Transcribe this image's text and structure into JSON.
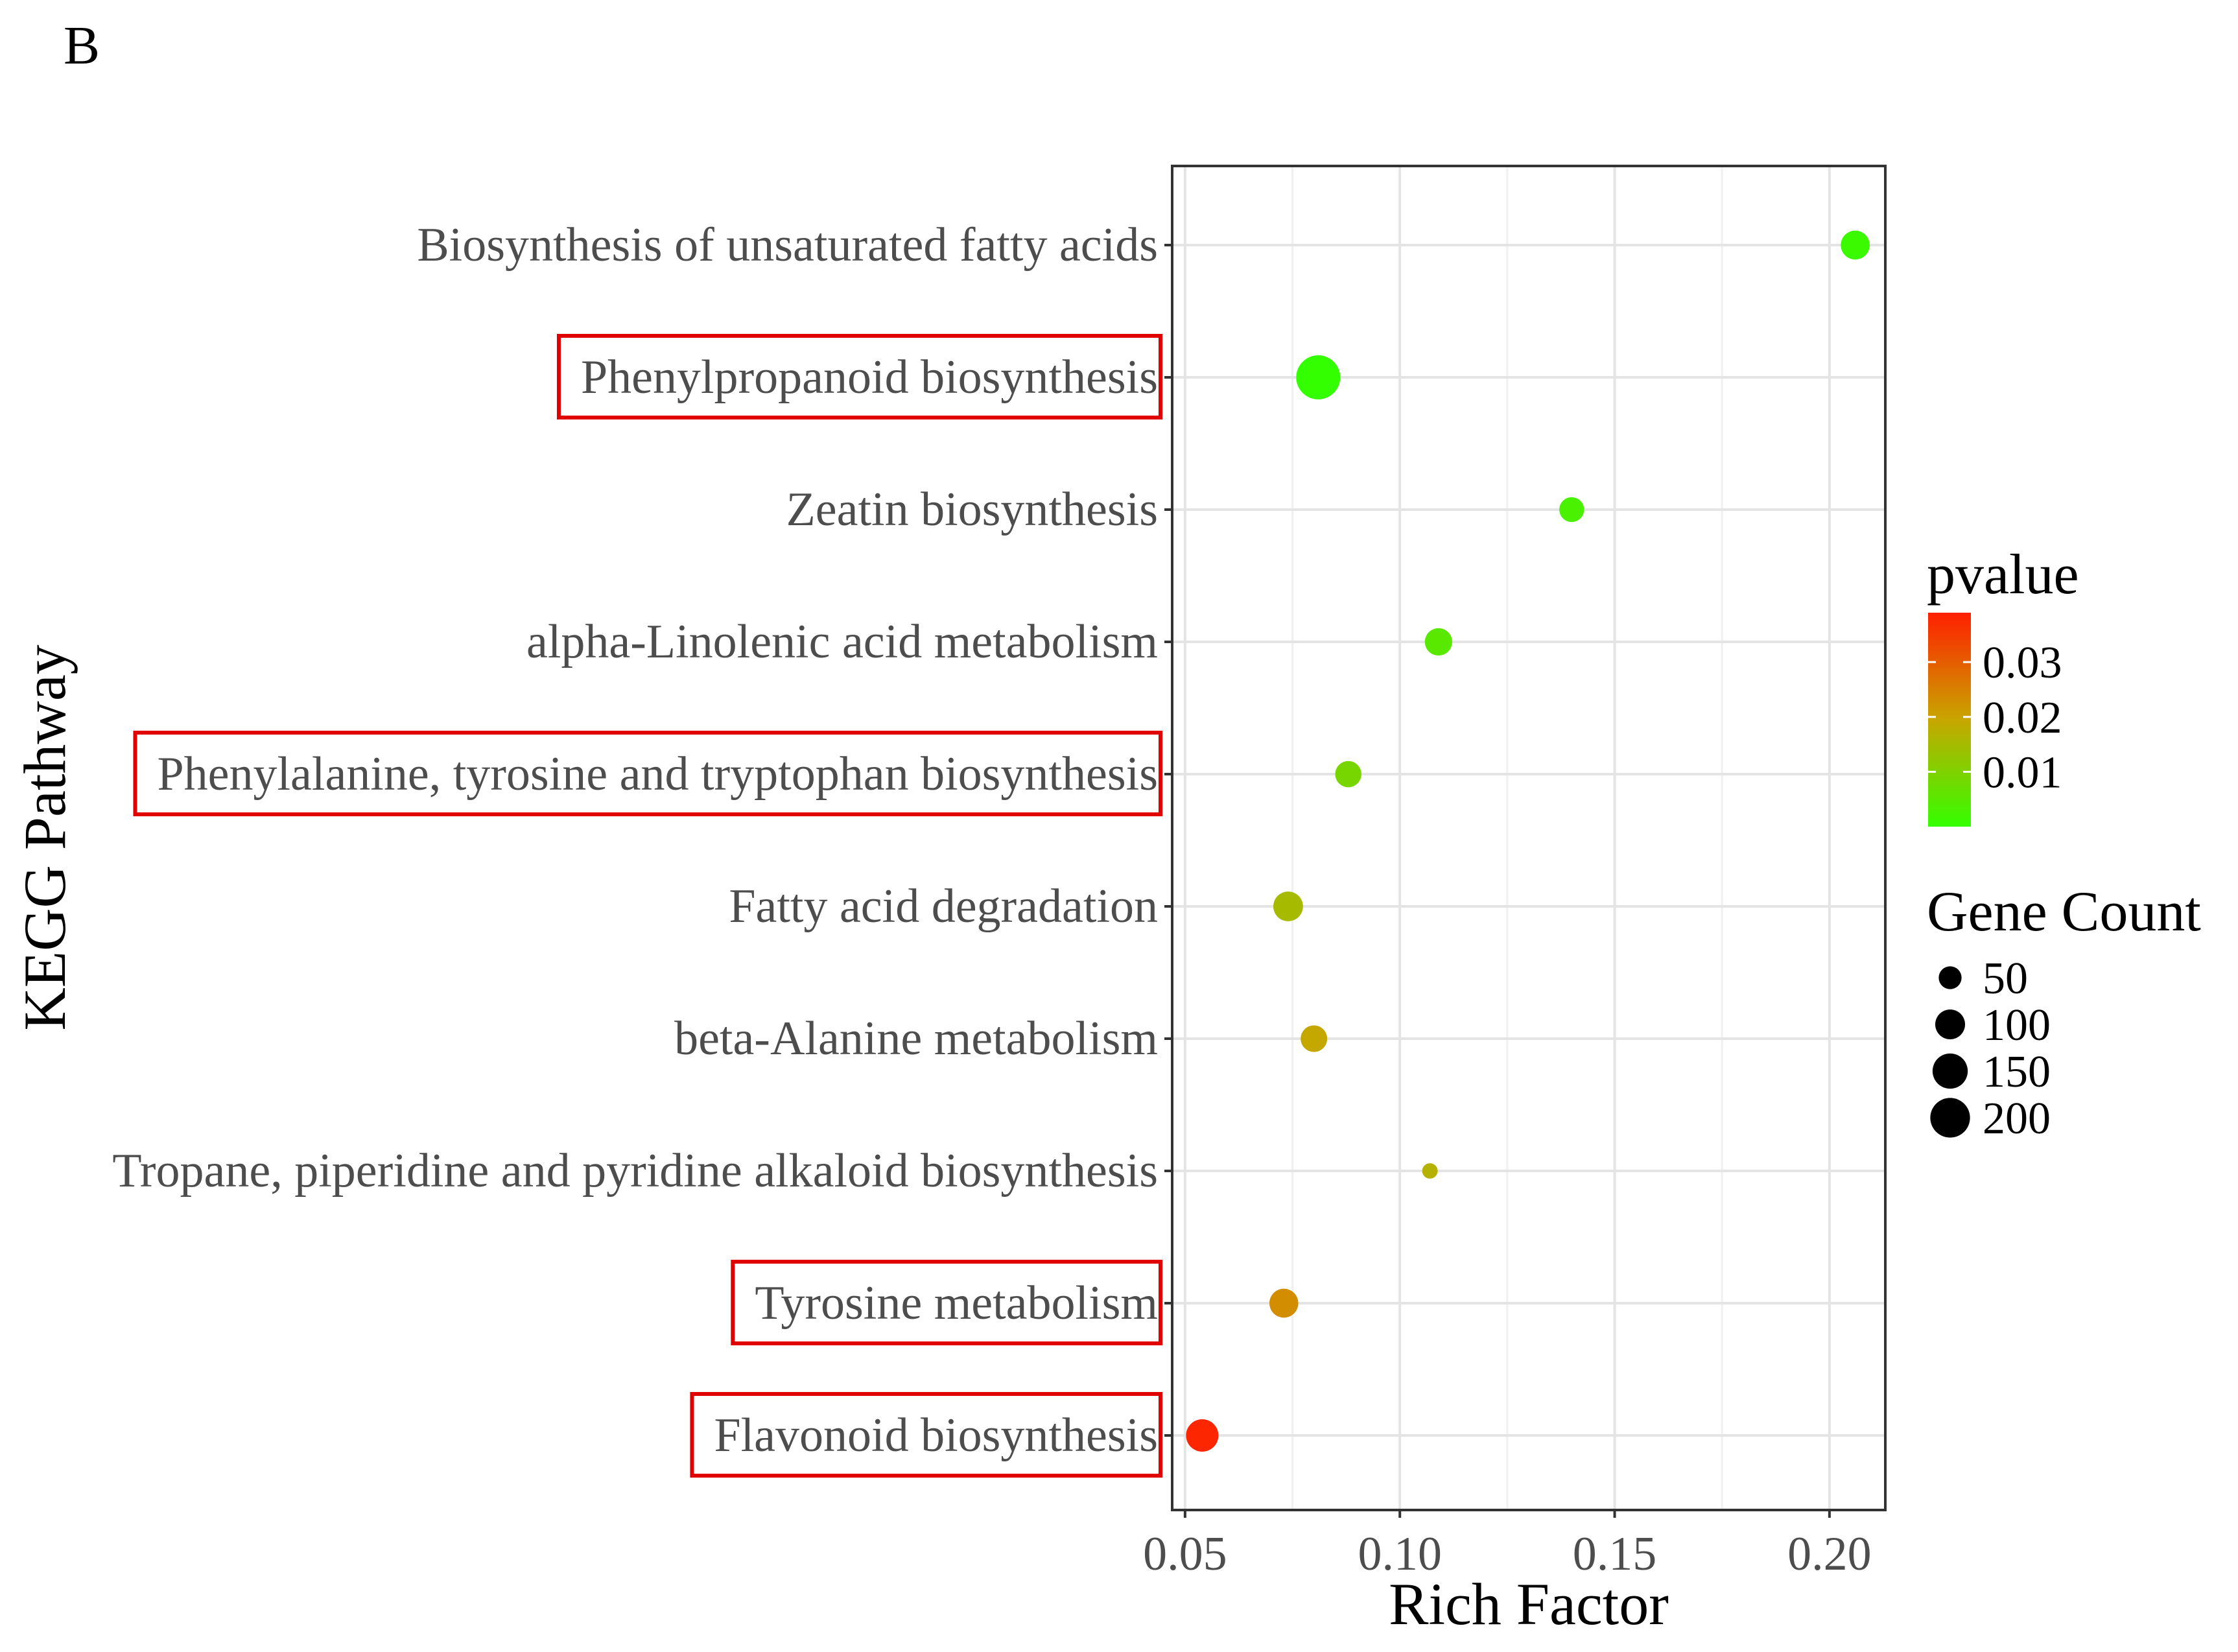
{
  "panel_label": "B",
  "chart_data": {
    "type": "scatter",
    "xlabel": "Rich Factor",
    "ylabel": "KEGG Pathway",
    "xlim": [
      0.047,
      0.213
    ],
    "xticks": [
      0.05,
      0.1,
      0.15,
      0.2
    ],
    "xtick_labels": [
      "0.05",
      "0.10",
      "0.15",
      "0.20"
    ],
    "grid": true,
    "legend_position": "right",
    "points": [
      {
        "pathway": "Biosynthesis of unsaturated fatty acids",
        "rich_factor": 0.206,
        "gene_count": 75,
        "pvalue": 0.001,
        "highlighted": false
      },
      {
        "pathway": "Phenylpropanoid biosynthesis",
        "rich_factor": 0.081,
        "gene_count": 210,
        "pvalue": 0.0001,
        "highlighted": true
      },
      {
        "pathway": "Zeatin biosynthesis",
        "rich_factor": 0.14,
        "gene_count": 50,
        "pvalue": 0.003,
        "highlighted": false
      },
      {
        "pathway": "alpha-Linolenic acid metabolism",
        "rich_factor": 0.109,
        "gene_count": 65,
        "pvalue": 0.005,
        "highlighted": false
      },
      {
        "pathway": "Phenylalanine, tyrosine and tryptophan biosynthesis",
        "rich_factor": 0.088,
        "gene_count": 58,
        "pvalue": 0.009,
        "highlighted": true
      },
      {
        "pathway": "Fatty acid degradation",
        "rich_factor": 0.074,
        "gene_count": 80,
        "pvalue": 0.015,
        "highlighted": false
      },
      {
        "pathway": "beta-Alanine metabolism",
        "rich_factor": 0.08,
        "gene_count": 60,
        "pvalue": 0.019,
        "highlighted": false
      },
      {
        "pathway": "Tropane, piperidine and pyridine alkaloid biosynthesis",
        "rich_factor": 0.107,
        "gene_count": 12,
        "pvalue": 0.017,
        "highlighted": false
      },
      {
        "pathway": "Tyrosine metabolism",
        "rich_factor": 0.073,
        "gene_count": 75,
        "pvalue": 0.023,
        "highlighted": true
      },
      {
        "pathway": "Flavonoid biosynthesis",
        "rich_factor": 0.054,
        "gene_count": 100,
        "pvalue": 0.038,
        "highlighted": true
      }
    ],
    "color_legend": {
      "title": "pvalue",
      "min": 0.0,
      "max": 0.039,
      "ticks": [
        0.01,
        0.02,
        0.03
      ],
      "tick_labels": [
        "0.01",
        "0.02",
        "0.03"
      ],
      "low_color": "#33ff00",
      "mid_color": "#c8a600",
      "high_color": "#ff1f00"
    },
    "size_legend": {
      "title": "Gene Count",
      "values": [
        50,
        100,
        150,
        200
      ],
      "labels": [
        "50",
        "100",
        "150",
        "200"
      ]
    },
    "highlight_box_color": "#e00000"
  }
}
